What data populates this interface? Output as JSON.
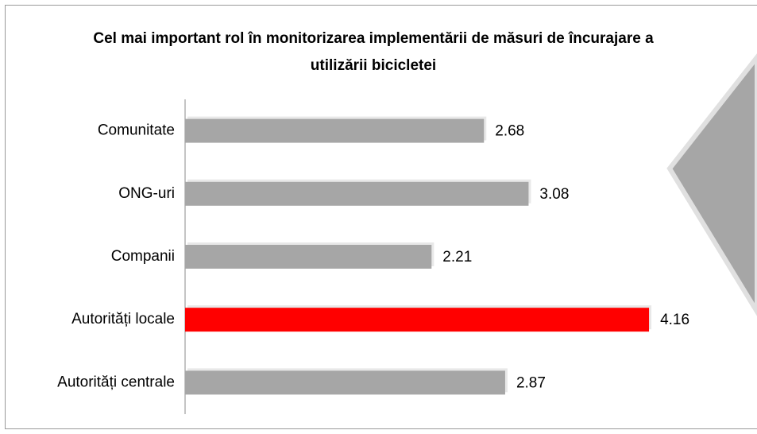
{
  "chart_data": {
    "type": "hbar",
    "title": "Cel mai important rol în monitorizarea implementării de măsuri  de încurajare a utilizării bicicletei",
    "categories": [
      "Comunitate",
      "ONG-uri",
      "Companii",
      "Autorități locale",
      "Autorități centrale"
    ],
    "values": [
      2.68,
      3.08,
      2.21,
      4.16,
      2.87
    ],
    "colors": [
      "#a6a6a6",
      "#a6a6a6",
      "#a6a6a6",
      "#ff0000",
      "#a6a6a6"
    ],
    "xlim": [
      0,
      5
    ]
  }
}
